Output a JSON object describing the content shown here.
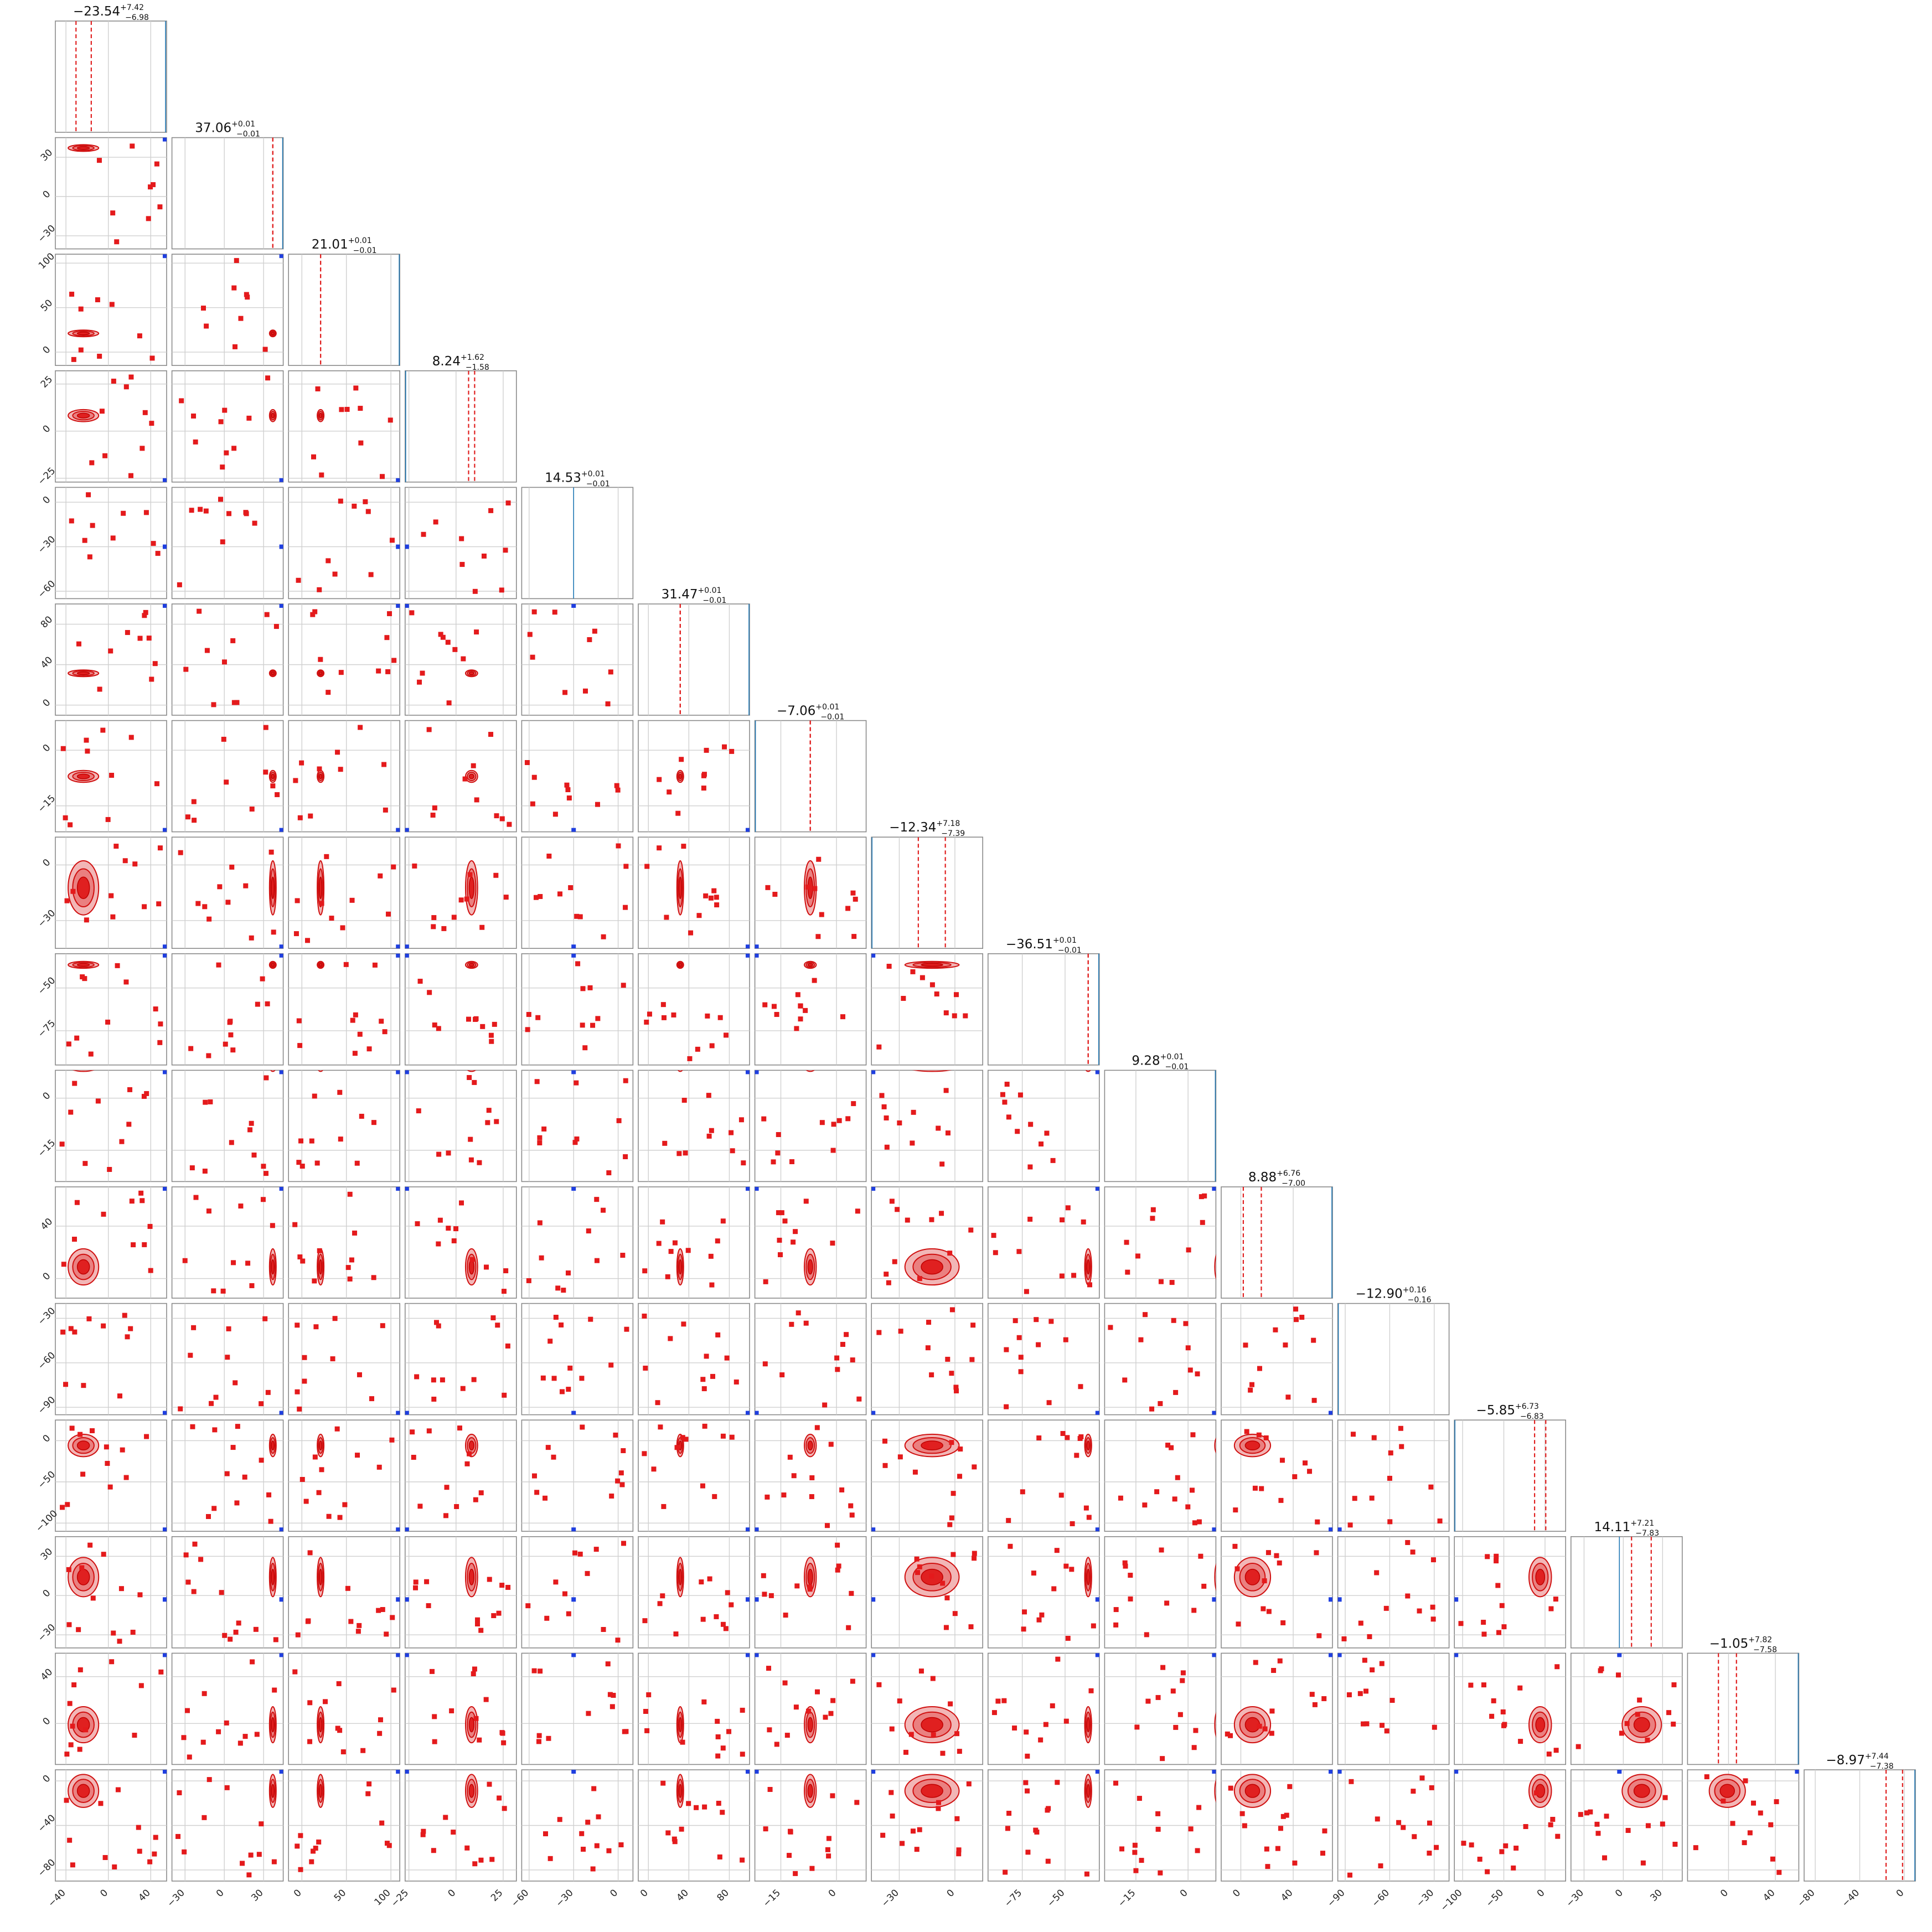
{
  "chart_data": {
    "type": "scatter",
    "variant": "corner-plot",
    "grid": true,
    "colors": {
      "posterior": "#e41a1c",
      "truth": "#1f3fe0",
      "truth_line": "#1f77b4"
    },
    "titles": [
      {
        "value": "−23.54",
        "plus": "+7.42",
        "minus": "−6.98"
      },
      {
        "value": "37.06",
        "plus": "+0.01",
        "minus": "−0.01"
      },
      {
        "value": "21.01",
        "plus": "+0.01",
        "minus": "−0.01"
      },
      {
        "value": "8.24",
        "plus": "+1.62",
        "minus": "−1.58"
      },
      {
        "value": "14.53",
        "plus": "+0.01",
        "minus": "−0.01"
      },
      {
        "value": "31.47",
        "plus": "+0.01",
        "minus": "−0.01"
      },
      {
        "value": "−7.06",
        "plus": "+0.01",
        "minus": "−0.01"
      },
      {
        "value": "−12.34",
        "plus": "+7.18",
        "minus": "−7.39"
      },
      {
        "value": "−36.51",
        "plus": "+0.01",
        "minus": "−0.01"
      },
      {
        "value": "9.28",
        "plus": "+0.01",
        "minus": "−0.01"
      },
      {
        "value": "8.88",
        "plus": "+6.76",
        "minus": "−7.00"
      },
      {
        "value": "−12.90",
        "plus": "+0.16",
        "minus": "−0.16"
      },
      {
        "value": "−5.85",
        "plus": "+6.73",
        "minus": "−6.83"
      },
      {
        "value": "14.11",
        "plus": "+7.21",
        "minus": "−7.83"
      },
      {
        "value": "−1.05",
        "plus": "+7.82",
        "minus": "−7.58"
      },
      {
        "value": "−8.97",
        "plus": "+7.44",
        "minus": "−7.38"
      }
    ],
    "ranges": [
      [
        -50,
        55
      ],
      [
        -40,
        45
      ],
      [
        -15,
        110
      ],
      [
        -27,
        32
      ],
      [
        -65,
        10
      ],
      [
        -10,
        100
      ],
      [
        -22,
        8
      ],
      [
        -45,
        15
      ],
      [
        -95,
        -30
      ],
      [
        -24,
        8
      ],
      [
        -15,
        70
      ],
      [
        -95,
        -20
      ],
      [
        -110,
        25
      ],
      [
        -40,
        45
      ],
      [
        -35,
        60
      ],
      [
        -90,
        10
      ]
    ],
    "x_ticks": [
      [
        {
          "v": -40,
          "label": "−40"
        },
        {
          "v": 0,
          "label": "0"
        },
        {
          "v": 40,
          "label": "40"
        }
      ],
      [
        {
          "v": -30,
          "label": "−30"
        },
        {
          "v": 0,
          "label": "0"
        },
        {
          "v": 30,
          "label": "30"
        }
      ],
      [
        {
          "v": 0,
          "label": "0"
        },
        {
          "v": 50,
          "label": "50"
        },
        {
          "v": 100,
          "label": "100"
        }
      ],
      [
        {
          "v": -25,
          "label": "−25"
        },
        {
          "v": 0,
          "label": "0"
        },
        {
          "v": 25,
          "label": "25"
        }
      ],
      [
        {
          "v": -60,
          "label": "−60"
        },
        {
          "v": -30,
          "label": "−30"
        },
        {
          "v": 0,
          "label": "0"
        }
      ],
      [
        {
          "v": 0,
          "label": "0"
        },
        {
          "v": 40,
          "label": "40"
        },
        {
          "v": 80,
          "label": "80"
        }
      ],
      [
        {
          "v": -15,
          "label": "−15"
        },
        {
          "v": 0,
          "label": "0"
        }
      ],
      [
        {
          "v": -30,
          "label": "−30"
        },
        {
          "v": 0,
          "label": "0"
        }
      ],
      [
        {
          "v": -75,
          "label": "−75"
        },
        {
          "v": -50,
          "label": "−50"
        }
      ],
      [
        {
          "v": -15,
          "label": "−15"
        },
        {
          "v": 0,
          "label": "0"
        }
      ],
      [
        {
          "v": 0,
          "label": "0"
        },
        {
          "v": 40,
          "label": "40"
        }
      ],
      [
        {
          "v": -90,
          "label": "−90"
        },
        {
          "v": -60,
          "label": "−60"
        },
        {
          "v": -30,
          "label": "−30"
        }
      ],
      [
        {
          "v": -100,
          "label": "−100"
        },
        {
          "v": -50,
          "label": "−50"
        },
        {
          "v": 0,
          "label": "0"
        }
      ],
      [
        {
          "v": -30,
          "label": "−30"
        },
        {
          "v": 0,
          "label": "0"
        },
        {
          "v": 30,
          "label": "30"
        }
      ],
      [
        {
          "v": 0,
          "label": "0"
        },
        {
          "v": 40,
          "label": "40"
        }
      ],
      [
        {
          "v": -80,
          "label": "−80"
        },
        {
          "v": -40,
          "label": "−40"
        },
        {
          "v": 0,
          "label": "0"
        }
      ]
    ],
    "y_ticks": [
      [],
      [
        {
          "v": 30,
          "label": "30"
        },
        {
          "v": 0,
          "label": "0"
        },
        {
          "v": -30,
          "label": "−30"
        }
      ],
      [
        {
          "v": 100,
          "label": "100"
        },
        {
          "v": 50,
          "label": "50"
        },
        {
          "v": 0,
          "label": "0"
        }
      ],
      [
        {
          "v": 25,
          "label": "25"
        },
        {
          "v": 0,
          "label": "0"
        },
        {
          "v": -25,
          "label": "−25"
        }
      ],
      [
        {
          "v": 0,
          "label": "0"
        },
        {
          "v": -30,
          "label": "−30"
        },
        {
          "v": -60,
          "label": "−60"
        }
      ],
      [
        {
          "v": 80,
          "label": "80"
        },
        {
          "v": 40,
          "label": "40"
        },
        {
          "v": 0,
          "label": "0"
        }
      ],
      [
        {
          "v": 0,
          "label": "0"
        },
        {
          "v": -15,
          "label": "−15"
        }
      ],
      [
        {
          "v": 0,
          "label": "0"
        },
        {
          "v": -30,
          "label": "−30"
        }
      ],
      [
        {
          "v": -50,
          "label": "−50"
        },
        {
          "v": -75,
          "label": "−75"
        }
      ],
      [
        {
          "v": 0,
          "label": "0"
        },
        {
          "v": -15,
          "label": "−15"
        }
      ],
      [
        {
          "v": 40,
          "label": "40"
        },
        {
          "v": 0,
          "label": "0"
        }
      ],
      [
        {
          "v": -30,
          "label": "−30"
        },
        {
          "v": -60,
          "label": "−60"
        },
        {
          "v": -90,
          "label": "−90"
        }
      ],
      [
        {
          "v": 0,
          "label": "0"
        },
        {
          "v": -50,
          "label": "−50"
        },
        {
          "v": -100,
          "label": "−100"
        }
      ],
      [
        {
          "v": 30,
          "label": "30"
        },
        {
          "v": 0,
          "label": "0"
        },
        {
          "v": -30,
          "label": "−30"
        }
      ],
      [
        {
          "v": 40,
          "label": "40"
        },
        {
          "v": 0,
          "label": "0"
        }
      ],
      [
        {
          "v": 0,
          "label": "0"
        },
        {
          "v": -40,
          "label": "−40"
        },
        {
          "v": -80,
          "label": "−80"
        }
      ]
    ],
    "medians": [
      -23.54,
      37.06,
      21.01,
      8.24,
      14.53,
      31.47,
      -7.06,
      -12.34,
      -36.51,
      9.28,
      8.88,
      -12.9,
      -5.85,
      14.11,
      -1.05,
      -8.97
    ],
    "lower": [
      -30.52,
      37.05,
      21.0,
      6.66,
      14.52,
      31.46,
      -7.07,
      -19.73,
      -36.52,
      9.27,
      1.88,
      -13.06,
      -12.68,
      6.28,
      -8.63,
      -16.35
    ],
    "upper": [
      -16.12,
      37.07,
      21.02,
      9.86,
      14.54,
      31.48,
      -7.05,
      -5.16,
      -36.5,
      9.29,
      15.64,
      -12.74,
      0.88,
      21.32,
      6.77,
      -1.53
    ],
    "sigmas": [
      7.2,
      0.8,
      1.0,
      1.6,
      0.8,
      0.8,
      0.8,
      7.3,
      1.0,
      0.8,
      6.9,
      0.8,
      6.8,
      7.5,
      7.7,
      7.4
    ],
    "truths": [
      54,
      45,
      110,
      -27,
      -30,
      100,
      -22,
      -45,
      -30,
      8,
      70,
      -95,
      -110,
      -3,
      60,
      10
    ]
  }
}
